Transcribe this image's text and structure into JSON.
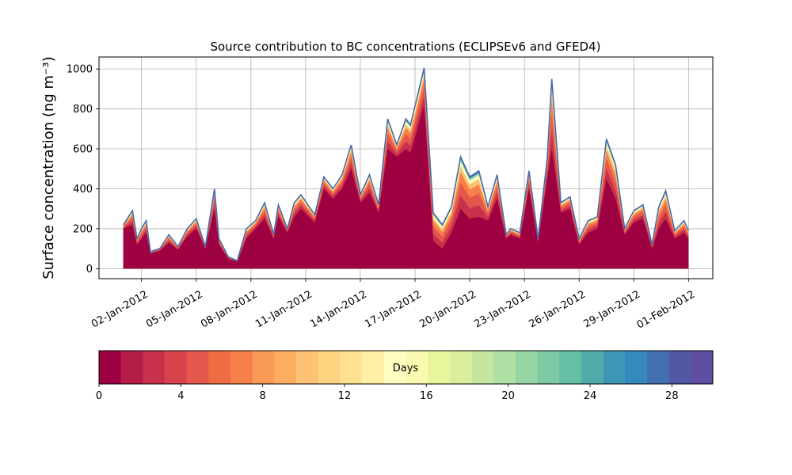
{
  "chart_data": {
    "type": "area",
    "title": "Source contribution to BC concentrations (ECLIPSEv6 and GFED4)",
    "ylabel": "Surface concentration (ng m⁻³)",
    "ylim": [
      -50,
      1060
    ],
    "yticks": [
      0,
      200,
      400,
      600,
      800,
      1000
    ],
    "xlim": [
      "2011-12-30T16:00",
      "2012-02-02T08:00"
    ],
    "xticks": [
      "02-Jan-2012",
      "05-Jan-2012",
      "08-Jan-2012",
      "11-Jan-2012",
      "14-Jan-2012",
      "17-Jan-2012",
      "20-Jan-2012",
      "23-Jan-2012",
      "26-Jan-2012",
      "29-Jan-2012",
      "01-Feb-2012"
    ],
    "xtick_dates": [
      "2012-01-02",
      "2012-01-05",
      "2012-01-08",
      "2012-01-11",
      "2012-01-14",
      "2012-01-17",
      "2012-01-20",
      "2012-01-23",
      "2012-01-26",
      "2012-01-29",
      "2012-02-01"
    ],
    "grid": true,
    "series": [
      {
        "x": [
          "2012-01-01T00:00",
          "2012-01-01T12:00",
          "2012-01-01T18:00",
          "2012-01-02T00:00",
          "2012-01-02T06:00",
          "2012-01-02T12:00",
          "2012-01-02T15:00",
          "2012-01-03T00:00",
          "2012-01-03T12:00",
          "2012-01-04T00:00",
          "2012-01-04T12:00",
          "2012-01-05T00:00",
          "2012-01-05T12:00",
          "2012-01-06T00:00",
          "2012-01-06T06:00",
          "2012-01-06T18:00",
          "2012-01-07T06:00",
          "2012-01-07T18:00",
          "2012-01-08T06:00",
          "2012-01-08T18:00",
          "2012-01-09T06:00",
          "2012-01-09T12:00",
          "2012-01-10T00:00",
          "2012-01-10T09:00",
          "2012-01-10T18:00",
          "2012-01-11T12:00",
          "2012-01-12T00:00",
          "2012-01-12T12:00",
          "2012-01-13T00:00",
          "2012-01-13T12:00",
          "2012-01-14T00:00",
          "2012-01-14T12:00",
          "2012-01-15T00:00",
          "2012-01-15T12:00",
          "2012-01-16T00:00",
          "2012-01-16T12:00",
          "2012-01-16T18:00",
          "2012-01-17T12:00",
          "2012-01-18T00:00",
          "2012-01-18T12:00",
          "2012-01-19T00:00",
          "2012-01-19T12:00",
          "2012-01-20T00:00",
          "2012-01-20T12:00",
          "2012-01-21T00:00",
          "2012-01-21T12:00",
          "2012-01-22T00:00",
          "2012-01-22T06:00",
          "2012-01-22T18:00",
          "2012-01-23T06:00",
          "2012-01-23T18:00",
          "2012-01-24T06:00",
          "2012-01-24T12:00",
          "2012-01-25T00:00",
          "2012-01-25T12:00",
          "2012-01-26T00:00",
          "2012-01-26T12:00",
          "2012-01-27T00:00",
          "2012-01-27T12:00",
          "2012-01-28T00:00",
          "2012-01-28T12:00",
          "2012-01-29T00:00",
          "2012-01-29T12:00",
          "2012-01-30T00:00",
          "2012-01-30T09:00",
          "2012-01-30T18:00",
          "2012-01-31T06:00",
          "2012-01-31T18:00",
          "2012-02-01T00:00"
        ],
        "total": [
          220,
          290,
          150,
          200,
          240,
          80,
          90,
          100,
          170,
          110,
          200,
          250,
          110,
          400,
          150,
          60,
          40,
          200,
          240,
          330,
          170,
          320,
          200,
          330,
          370,
          270,
          460,
          400,
          470,
          620,
          370,
          470,
          320,
          750,
          620,
          750,
          720,
          1005,
          280,
          220,
          310,
          560,
          460,
          490,
          310,
          470,
          170,
          200,
          180,
          490,
          150,
          550,
          950,
          330,
          360,
          150,
          240,
          260,
          650,
          520,
          200,
          290,
          320,
          120,
          310,
          390,
          190,
          240,
          190
        ],
        "local": [
          200,
          220,
          120,
          150,
          180,
          75,
          80,
          90,
          130,
          95,
          160,
          200,
          100,
          300,
          120,
          50,
          35,
          150,
          200,
          250,
          150,
          260,
          180,
          260,
          300,
          230,
          400,
          350,
          400,
          500,
          330,
          380,
          280,
          600,
          560,
          600,
          580,
          820,
          140,
          100,
          180,
          300,
          250,
          260,
          240,
          350,
          150,
          170,
          150,
          400,
          130,
          450,
          600,
          280,
          300,
          120,
          180,
          200,
          450,
          350,
          170,
          230,
          250,
          100,
          200,
          250,
          150,
          180,
          150
        ]
      }
    ],
    "colorbar": {
      "label": "Days",
      "vmin": 0,
      "vmax": 30,
      "ticks": [
        "0",
        "4",
        "8",
        "12",
        "16",
        "20",
        "24",
        "28"
      ],
      "colors": [
        "#9e0142",
        "#b41d47",
        "#c9314b",
        "#d8434d",
        "#e4574c",
        "#ef6c43",
        "#f67f4b",
        "#fa9a58",
        "#fdae61",
        "#fdc274",
        "#fed481",
        "#fee291",
        "#fff0a6",
        "#fffec0",
        "#f7fab0",
        "#eaf69e",
        "#d9ef9b",
        "#c4e69f",
        "#aedfa3",
        "#95d5a4",
        "#7ccba5",
        "#65bfa6",
        "#51aca9",
        "#3c96b5",
        "#3489bd",
        "#4370b4",
        "#5158a4",
        "#5e4fa2"
      ]
    }
  }
}
